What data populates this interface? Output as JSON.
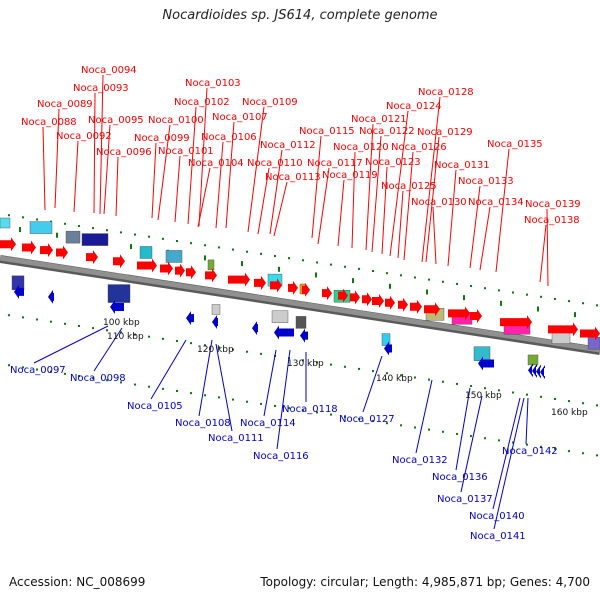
{
  "title": "Nocardioides sp. JS614, complete genome",
  "footer": {
    "accession": "Accession: NC_008699",
    "summary": "Topology: circular; Length: 4,985,871 bp; Genes: 4,700"
  },
  "colors": {
    "forward": "#ff0000",
    "reverse": "#0000cc",
    "axis": "#909090",
    "tick": "#0a7a0a"
  },
  "kbp_labels": [
    "100 kbp",
    "110 kbp",
    "120 kbp",
    "130 kbp",
    "140 kbp",
    "150 kbp",
    "160 kbp"
  ],
  "forward_genes": [
    "Noca_0088",
    "Noca_0089",
    "Noca_0092",
    "Noca_0093",
    "Noca_0094",
    "Noca_0095",
    "Noca_0096",
    "Noca_0099",
    "Noca_0100",
    "Noca_0101",
    "Noca_0102",
    "Noca_0103",
    "Noca_0104",
    "Noca_0106",
    "Noca_0107",
    "Noca_0109",
    "Noca_0110",
    "Noca_0112",
    "Noca_0113",
    "Noca_0115",
    "Noca_0117",
    "Noca_0119",
    "Noca_0120",
    "Noca_0121",
    "Noca_0122",
    "Noca_0123",
    "Noca_0124",
    "Noca_0125",
    "Noca_0126",
    "Noca_0128",
    "Noca_0129",
    "Noca_0130",
    "Noca_0131",
    "Noca_0133",
    "Noca_0134",
    "Noca_0135",
    "Noca_0138",
    "Noca_0139"
  ],
  "reverse_genes": [
    "Noca_0097",
    "Noca_0098",
    "Noca_0105",
    "Noca_0108",
    "Noca_0111",
    "Noca_0114",
    "Noca_0116",
    "Noca_0118",
    "Noca_0127",
    "Noca_0132",
    "Noca_0136",
    "Noca_0137",
    "Noca_0140",
    "Noca_0141",
    "Noca_0142"
  ]
}
